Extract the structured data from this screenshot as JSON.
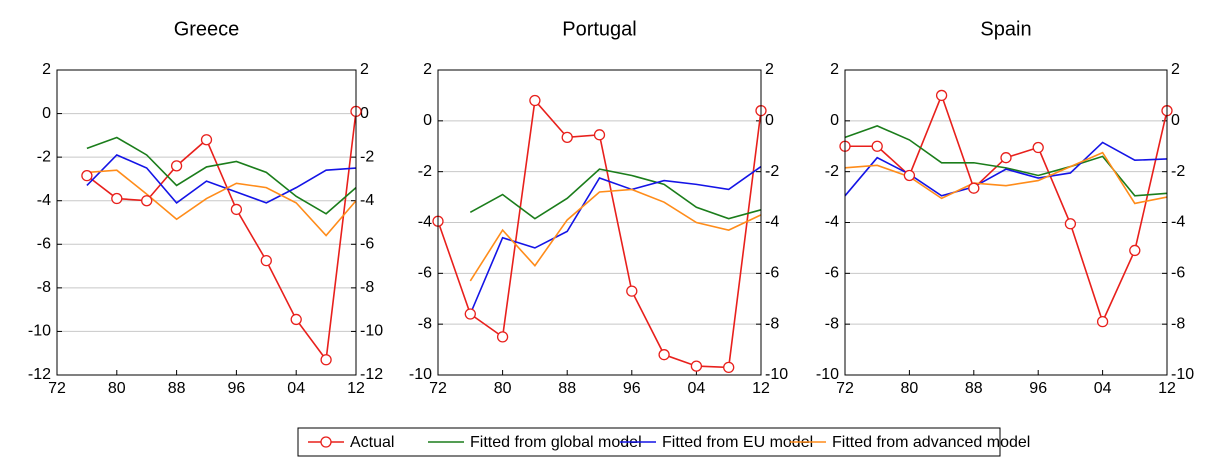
{
  "chart_data": [
    {
      "type": "line",
      "title": "Greece",
      "x": [
        1972,
        1976,
        1980,
        1984,
        1988,
        1992,
        1996,
        2000,
        2004,
        2008,
        2012
      ],
      "xlim": [
        1972,
        2012
      ],
      "xticks": [
        {
          "value": 1972,
          "label": "72"
        },
        {
          "value": 1980,
          "label": "80"
        },
        {
          "value": 1988,
          "label": "88"
        },
        {
          "value": 1996,
          "label": "96"
        },
        {
          "value": 2004,
          "label": "04"
        },
        {
          "value": 2012,
          "label": "12"
        }
      ],
      "ylim": [
        -12,
        2
      ],
      "yticks": [
        -12,
        -10,
        -8,
        -6,
        -4,
        -2,
        0,
        2
      ],
      "y2lim": [
        -12,
        2
      ],
      "y2ticks": [
        -12,
        -10,
        -8,
        -6,
        -4,
        -2,
        0,
        2
      ],
      "grid": true,
      "series": [
        {
          "name": "Actual",
          "color": "#e8201c",
          "marker": "circle",
          "values": [
            null,
            -2.85,
            -3.9,
            -4.0,
            -2.4,
            -1.2,
            -4.4,
            -6.75,
            -9.45,
            -11.3,
            0.1
          ]
        },
        {
          "name": "Fitted from global model",
          "color": "#1b7d1b",
          "values": [
            null,
            -1.6,
            -1.1,
            -1.9,
            -3.3,
            -2.45,
            -2.2,
            -2.7,
            -3.8,
            -4.6,
            -3.4
          ]
        },
        {
          "name": "Fitted from EU model",
          "color": "#1414e6",
          "values": [
            null,
            -3.3,
            -1.9,
            -2.5,
            -4.1,
            -3.1,
            -3.6,
            -4.1,
            -3.4,
            -2.6,
            -2.5
          ]
        },
        {
          "name": "Fitted from advanced model",
          "color": "#ff8c1a",
          "values": [
            null,
            -2.7,
            -2.6,
            -3.7,
            -4.85,
            -3.9,
            -3.2,
            -3.4,
            -4.1,
            -5.6,
            -4.0
          ]
        }
      ]
    },
    {
      "type": "line",
      "title": "Portugal",
      "x": [
        1972,
        1976,
        1980,
        1984,
        1988,
        1992,
        1996,
        2000,
        2004,
        2008,
        2012
      ],
      "xlim": [
        1972,
        2012
      ],
      "xticks": [
        {
          "value": 1972,
          "label": "72"
        },
        {
          "value": 1980,
          "label": "80"
        },
        {
          "value": 1988,
          "label": "88"
        },
        {
          "value": 1996,
          "label": "96"
        },
        {
          "value": 2004,
          "label": "04"
        },
        {
          "value": 2012,
          "label": "12"
        }
      ],
      "ylim": [
        -10,
        2
      ],
      "yticks": [
        -10,
        -8,
        -6,
        -4,
        -2,
        0,
        2
      ],
      "y2lim": [
        -10,
        2
      ],
      "y2ticks": [
        -10,
        -8,
        -6,
        -4,
        -2,
        0,
        2
      ],
      "grid": true,
      "series": [
        {
          "color": "#e8201c",
          "marker": "circle",
          "values": [
            -3.95,
            -7.6,
            -8.5,
            0.8,
            -0.65,
            -0.55,
            -6.7,
            -9.2,
            -9.65,
            -9.7,
            0.4
          ]
        },
        {
          "color": "#1b7d1b",
          "values": [
            null,
            -3.6,
            -2.9,
            -3.85,
            -3.05,
            -1.9,
            -2.15,
            -2.5,
            -3.4,
            -3.85,
            -3.5
          ]
        },
        {
          "color": "#1414e6",
          "values": [
            null,
            -7.6,
            -4.6,
            -5.0,
            -4.35,
            -2.25,
            -2.7,
            -2.35,
            -2.5,
            -2.7,
            -1.8
          ]
        },
        {
          "color": "#ff8c1a",
          "values": [
            null,
            -6.3,
            -4.3,
            -5.7,
            -3.9,
            -2.8,
            -2.7,
            -3.2,
            -4.0,
            -4.3,
            -3.7
          ]
        }
      ]
    },
    {
      "type": "line",
      "title": "Spain",
      "x": [
        1972,
        1976,
        1980,
        1984,
        1988,
        1992,
        1996,
        2000,
        2004,
        2008,
        2012
      ],
      "xlim": [
        1972,
        2012
      ],
      "xticks": [
        {
          "value": 1972,
          "label": "72"
        },
        {
          "value": 1980,
          "label": "80"
        },
        {
          "value": 1988,
          "label": "88"
        },
        {
          "value": 1996,
          "label": "96"
        },
        {
          "value": 2004,
          "label": "04"
        },
        {
          "value": 2012,
          "label": "12"
        }
      ],
      "ylim": [
        -10,
        2
      ],
      "yticks": [
        -10,
        -8,
        -6,
        -4,
        -2,
        0,
        2
      ],
      "y2lim": [
        -10,
        2
      ],
      "y2ticks": [
        -10,
        -8,
        -6,
        -4,
        -2,
        0,
        2
      ],
      "grid": true,
      "series": [
        {
          "color": "#e8201c",
          "marker": "circle",
          "values": [
            -1.0,
            -1.0,
            -2.15,
            1.0,
            -2.65,
            -1.45,
            -1.05,
            -4.05,
            -7.9,
            -5.1,
            0.4
          ]
        },
        {
          "color": "#1b7d1b",
          "values": [
            -0.65,
            -0.2,
            -0.75,
            -1.65,
            -1.65,
            -1.85,
            -2.15,
            -1.8,
            -1.4,
            -2.95,
            -2.85
          ]
        },
        {
          "color": "#1414e6",
          "values": [
            -2.95,
            -1.45,
            -2.1,
            -2.95,
            -2.6,
            -1.9,
            -2.25,
            -2.05,
            -0.85,
            -1.55,
            -1.5
          ]
        },
        {
          "color": "#ff8c1a",
          "values": [
            -1.85,
            -1.75,
            -2.2,
            -3.05,
            -2.45,
            -2.55,
            -2.35,
            -1.8,
            -1.25,
            -3.25,
            -3.0
          ]
        }
      ]
    }
  ]
}
